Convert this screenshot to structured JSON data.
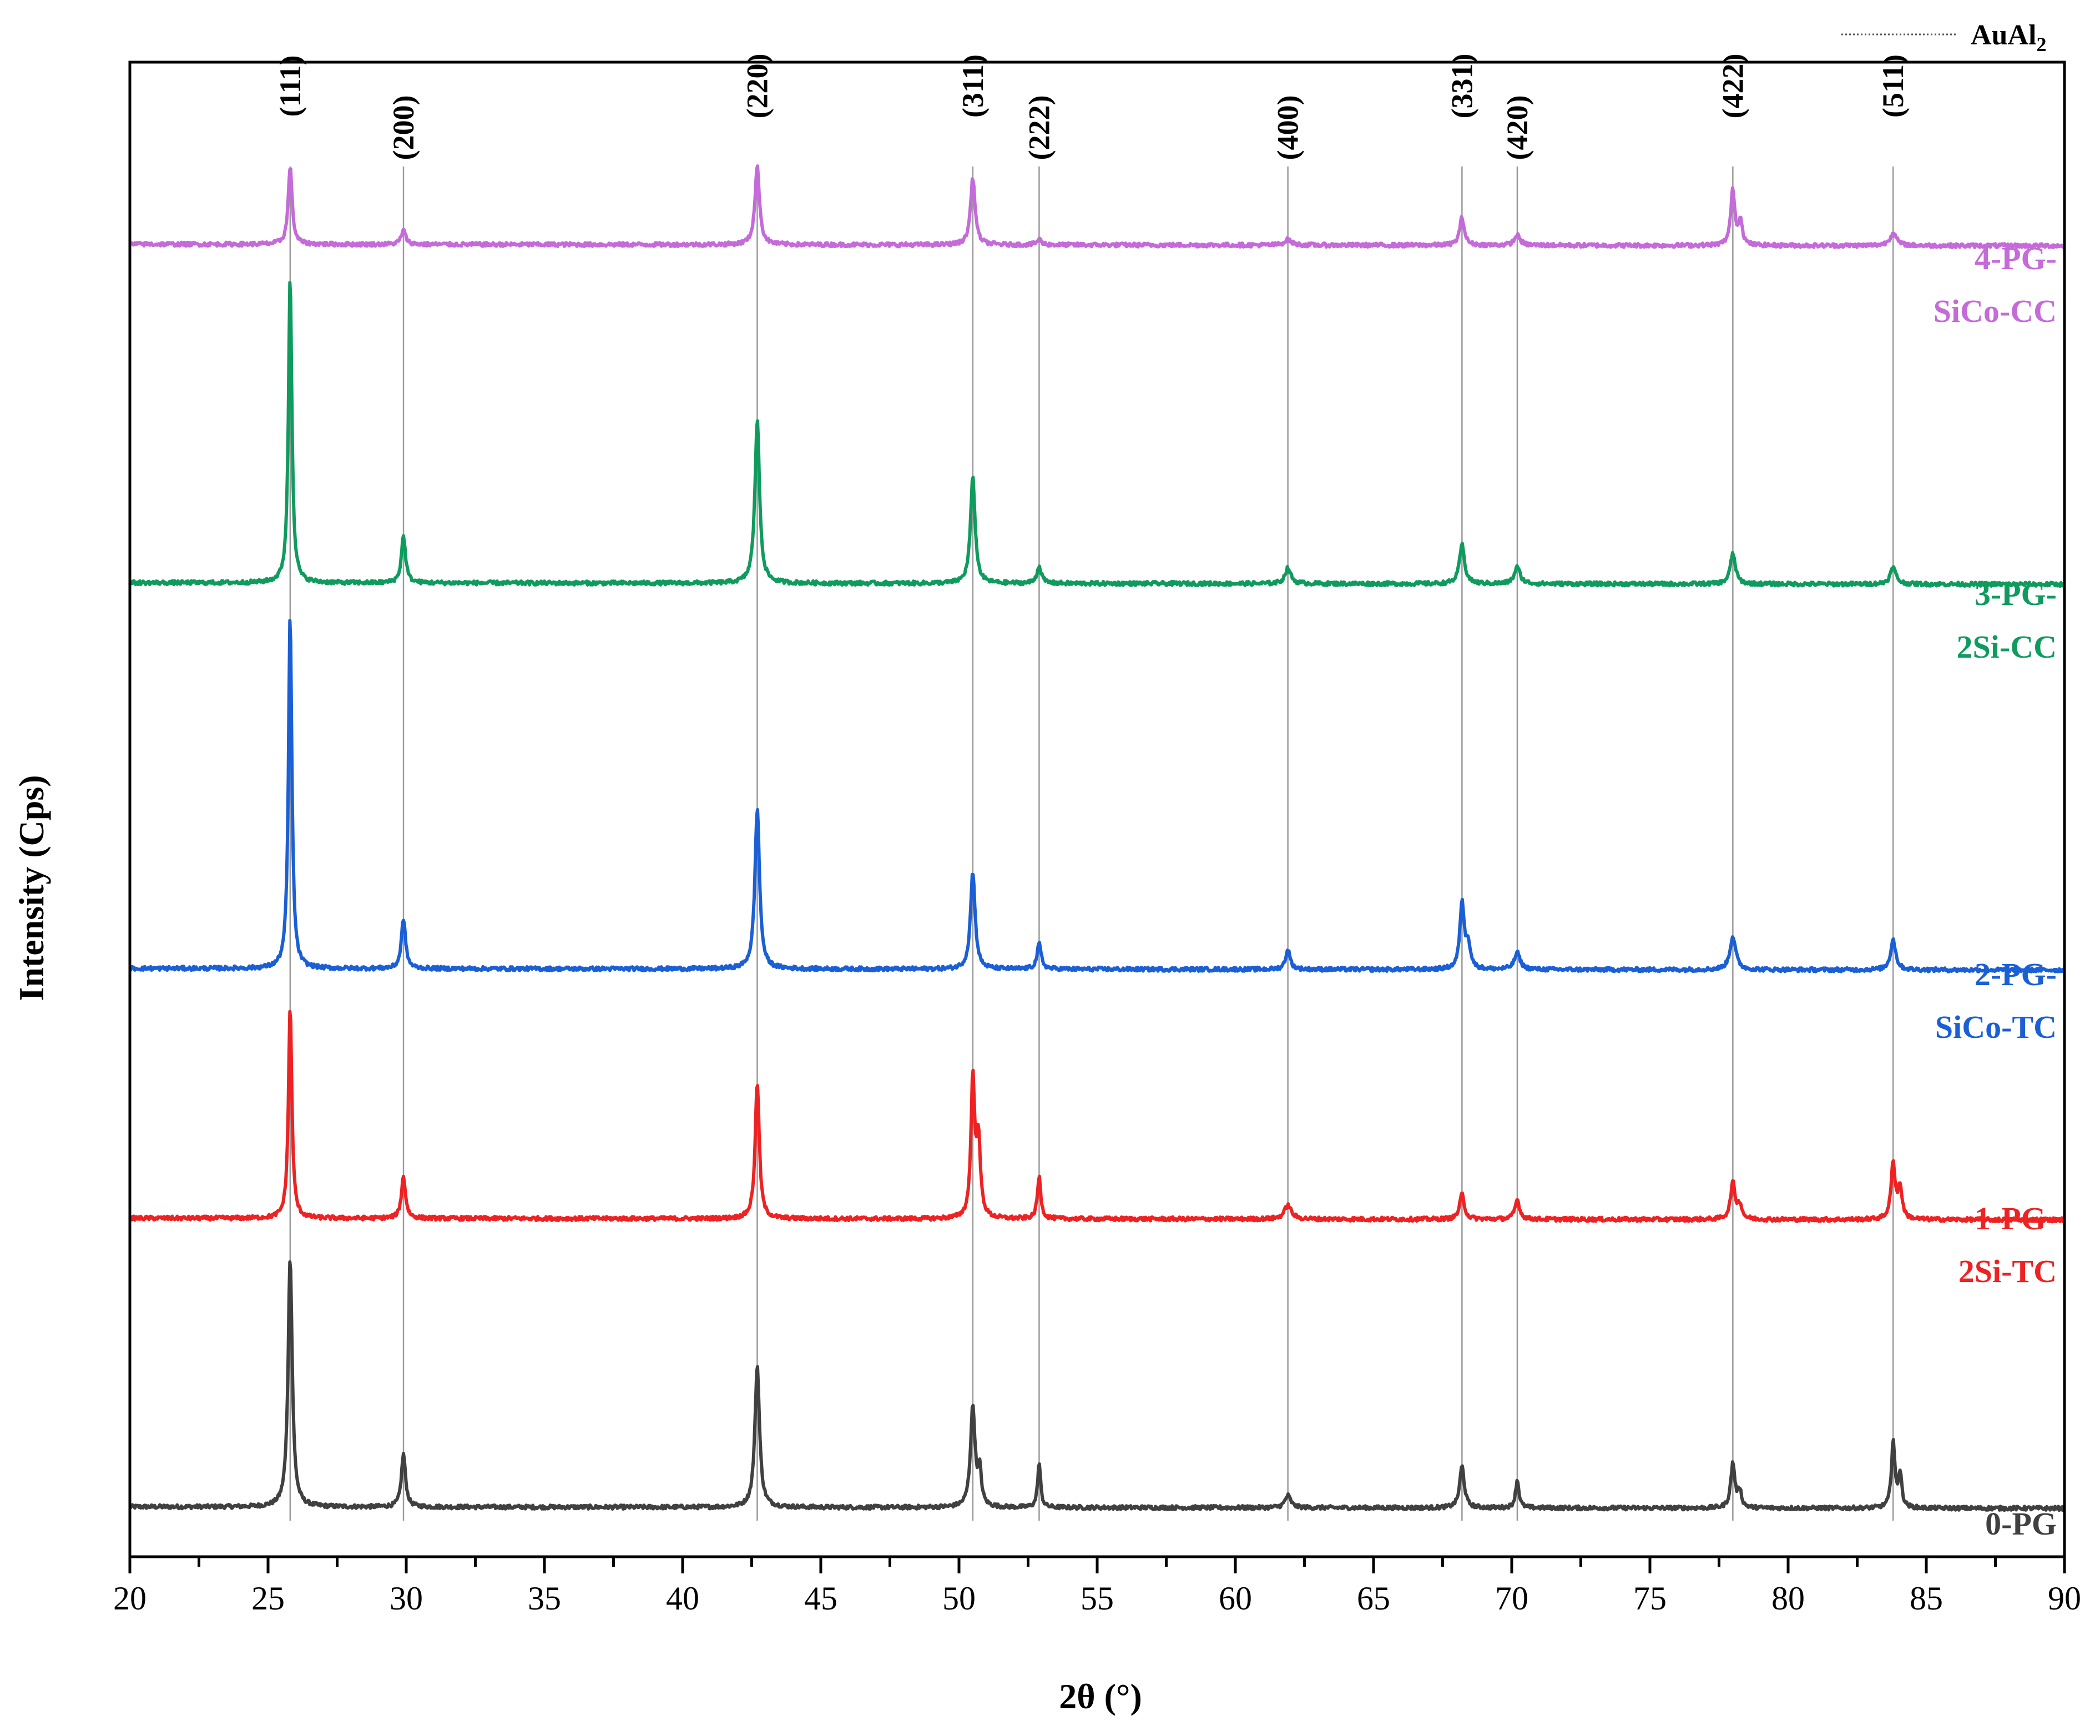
{
  "chart_data": {
    "type": "line",
    "title": "",
    "xlabel": "2θ (°)",
    "ylabel": "Intensity (Cps)",
    "xlim": [
      20,
      90
    ],
    "x_ticks": [
      20,
      25,
      30,
      35,
      40,
      45,
      50,
      55,
      60,
      65,
      70,
      75,
      80,
      85,
      90
    ],
    "y_ticks_shown": false,
    "legend": {
      "position": "top-right",
      "entries": [
        {
          "label": "AuAl",
          "subscript": "2",
          "style": "dotted"
        }
      ]
    },
    "reference_lines": [
      {
        "x": 25.8,
        "label": "(111)"
      },
      {
        "x": 29.9,
        "label": "(200)"
      },
      {
        "x": 42.7,
        "label": "(220)"
      },
      {
        "x": 50.5,
        "label": "(311)"
      },
      {
        "x": 52.9,
        "label": "(222)"
      },
      {
        "x": 61.9,
        "label": "(400)"
      },
      {
        "x": 68.2,
        "label": "(331)"
      },
      {
        "x": 70.2,
        "label": "(420)"
      },
      {
        "x": 78.0,
        "label": "(422)"
      },
      {
        "x": 83.8,
        "label": "(511)"
      }
    ],
    "series": [
      {
        "name": "0-PG",
        "label_lines": [
          "0-PG"
        ],
        "color": "#404040",
        "offset": 0,
        "baseline": 5,
        "peaks": [
          [
            25.8,
            450,
            0.18
          ],
          [
            29.9,
            95,
            0.18
          ],
          [
            42.7,
            255,
            0.2
          ],
          [
            50.5,
            180,
            0.2
          ],
          [
            50.75,
            60,
            0.15
          ],
          [
            52.9,
            80,
            0.13
          ],
          [
            61.9,
            22,
            0.25
          ],
          [
            68.2,
            75,
            0.2
          ],
          [
            70.2,
            50,
            0.15
          ],
          [
            78.0,
            80,
            0.18
          ],
          [
            78.25,
            30,
            0.15
          ],
          [
            83.8,
            120,
            0.15
          ],
          [
            84.05,
            60,
            0.15
          ]
        ]
      },
      {
        "name": "1-PG-2Si-TC",
        "label_lines": [
          "1-PG-",
          "2Si-TC"
        ],
        "color": "#ee2222",
        "offset": 520,
        "baseline": 5,
        "peaks": [
          [
            25.8,
            380,
            0.15
          ],
          [
            29.9,
            75,
            0.18
          ],
          [
            42.7,
            245,
            0.18
          ],
          [
            50.5,
            245,
            0.16
          ],
          [
            50.7,
            135,
            0.18
          ],
          [
            52.9,
            75,
            0.15
          ],
          [
            61.9,
            25,
            0.3
          ],
          [
            68.2,
            45,
            0.2
          ],
          [
            70.2,
            35,
            0.2
          ],
          [
            78.0,
            65,
            0.2
          ],
          [
            78.25,
            25,
            0.18
          ],
          [
            83.8,
            100,
            0.18
          ],
          [
            84.05,
            55,
            0.18
          ]
        ]
      },
      {
        "name": "2-PG-SiCo-TC",
        "label_lines": [
          "2-PG-",
          "SiCo-TC"
        ],
        "color": "#1a5fd6",
        "offset": 970,
        "baseline": 5,
        "peaks": [
          [
            25.8,
            635,
            0.15
          ],
          [
            29.9,
            90,
            0.18
          ],
          [
            42.7,
            290,
            0.2
          ],
          [
            50.5,
            175,
            0.2
          ],
          [
            52.9,
            45,
            0.18
          ],
          [
            61.9,
            35,
            0.2
          ],
          [
            68.2,
            120,
            0.18
          ],
          [
            68.42,
            45,
            0.2
          ],
          [
            70.2,
            30,
            0.25
          ],
          [
            78.0,
            60,
            0.25
          ],
          [
            83.8,
            55,
            0.22
          ]
        ]
      },
      {
        "name": "3-PG-2Si-CC",
        "label_lines": [
          "3-PG-",
          "2Si-CC"
        ],
        "color": "#109b5e",
        "offset": 1665,
        "baseline": 5,
        "peaks": [
          [
            25.8,
            550,
            0.15
          ],
          [
            29.9,
            85,
            0.18
          ],
          [
            42.7,
            295,
            0.2
          ],
          [
            50.5,
            190,
            0.2
          ],
          [
            52.9,
            30,
            0.2
          ],
          [
            61.9,
            28,
            0.25
          ],
          [
            68.2,
            70,
            0.22
          ],
          [
            70.2,
            30,
            0.25
          ],
          [
            78.0,
            55,
            0.22
          ],
          [
            83.8,
            30,
            0.25
          ]
        ]
      },
      {
        "name": "4-PG-SiCo-CC",
        "label_lines": [
          "4-PG-",
          "SiCo-CC"
        ],
        "color": "#c46ad9",
        "offset": 2275,
        "baseline": 5,
        "peaks": [
          [
            25.8,
            140,
            0.17
          ],
          [
            29.9,
            25,
            0.2
          ],
          [
            42.7,
            140,
            0.2
          ],
          [
            50.5,
            120,
            0.2
          ],
          [
            52.9,
            10,
            0.2
          ],
          [
            61.9,
            10,
            0.3
          ],
          [
            68.2,
            50,
            0.2
          ],
          [
            70.2,
            18,
            0.25
          ],
          [
            78.0,
            100,
            0.18
          ],
          [
            78.28,
            45,
            0.15
          ],
          [
            83.8,
            22,
            0.3
          ]
        ]
      }
    ]
  }
}
